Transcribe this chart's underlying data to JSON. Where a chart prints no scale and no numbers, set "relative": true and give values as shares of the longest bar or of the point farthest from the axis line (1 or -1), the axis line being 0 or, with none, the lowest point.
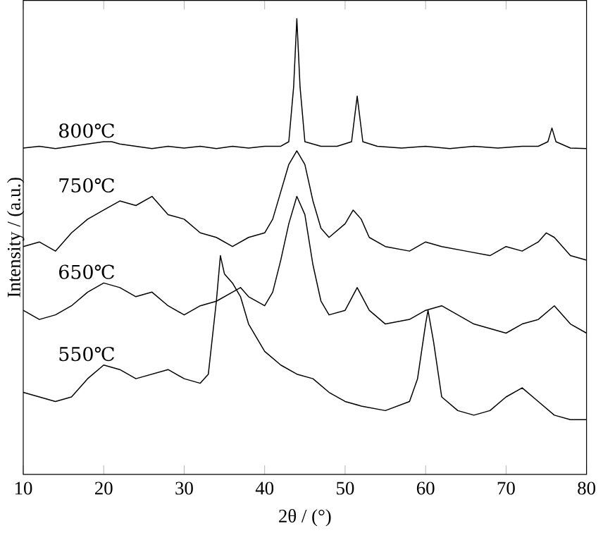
{
  "chart_data": {
    "type": "line",
    "relative": true,
    "xlabel": "2θ / (°)",
    "ylabel": "Intensity / (a.u.)",
    "xlim": [
      10,
      80
    ],
    "xticks": [
      10,
      20,
      30,
      40,
      50,
      60,
      70,
      80
    ],
    "marker": "none",
    "line_style": "solid",
    "series": [
      {
        "name": "800℃",
        "color": "#000000",
        "x": [
          10,
          12,
          14,
          16,
          18,
          20,
          21,
          22,
          24,
          26,
          28,
          30,
          32,
          34,
          36,
          38,
          40,
          42,
          43,
          43.6,
          44,
          44.4,
          45,
          47,
          49,
          50.8,
          51.5,
          52.2,
          54,
          57,
          60,
          63,
          66,
          69,
          72,
          74,
          75.2,
          75.7,
          76.2,
          78,
          80
        ],
        "values": [
          0.716,
          0.72,
          0.715,
          0.72,
          0.725,
          0.73,
          0.73,
          0.725,
          0.72,
          0.715,
          0.72,
          0.716,
          0.72,
          0.715,
          0.72,
          0.716,
          0.72,
          0.72,
          0.73,
          0.85,
          1.0,
          0.85,
          0.73,
          0.72,
          0.72,
          0.73,
          0.83,
          0.73,
          0.72,
          0.716,
          0.72,
          0.715,
          0.72,
          0.716,
          0.72,
          0.72,
          0.73,
          0.76,
          0.73,
          0.716,
          0.715
        ]
      },
      {
        "name": "750℃",
        "color": "#000000",
        "x": [
          10,
          12,
          14,
          16,
          18,
          20,
          22,
          24,
          26,
          28,
          30,
          32,
          34,
          36,
          38,
          40,
          41,
          42,
          43,
          44,
          45,
          46,
          47,
          48,
          50,
          51,
          52,
          53,
          55,
          58,
          60,
          62,
          65,
          68,
          70,
          72,
          74,
          75,
          76,
          78,
          80
        ],
        "values": [
          0.5,
          0.51,
          0.49,
          0.53,
          0.56,
          0.58,
          0.6,
          0.59,
          0.61,
          0.57,
          0.56,
          0.53,
          0.52,
          0.5,
          0.52,
          0.53,
          0.56,
          0.62,
          0.68,
          0.71,
          0.68,
          0.6,
          0.54,
          0.52,
          0.55,
          0.58,
          0.56,
          0.52,
          0.5,
          0.49,
          0.51,
          0.5,
          0.49,
          0.48,
          0.5,
          0.49,
          0.51,
          0.53,
          0.52,
          0.48,
          0.47
        ]
      },
      {
        "name": "650℃",
        "color": "#000000",
        "x": [
          10,
          12,
          14,
          16,
          18,
          20,
          22,
          24,
          26,
          28,
          30,
          32,
          34,
          36,
          37,
          38,
          40,
          41,
          42,
          43,
          44,
          45,
          46,
          47,
          48,
          50,
          51.5,
          53,
          55,
          58,
          60,
          62,
          64,
          66,
          68,
          70,
          72,
          74,
          76,
          78,
          80
        ],
        "values": [
          0.36,
          0.34,
          0.35,
          0.37,
          0.4,
          0.42,
          0.41,
          0.39,
          0.4,
          0.37,
          0.35,
          0.37,
          0.38,
          0.4,
          0.41,
          0.39,
          0.37,
          0.4,
          0.47,
          0.55,
          0.61,
          0.57,
          0.46,
          0.38,
          0.35,
          0.36,
          0.41,
          0.36,
          0.33,
          0.34,
          0.36,
          0.37,
          0.35,
          0.33,
          0.32,
          0.31,
          0.33,
          0.34,
          0.37,
          0.33,
          0.31
        ]
      },
      {
        "name": "550℃",
        "color": "#000000",
        "x": [
          10,
          12,
          14,
          16,
          18,
          20,
          22,
          24,
          26,
          28,
          30,
          32,
          33,
          34,
          34.5,
          35,
          36,
          37,
          38,
          40,
          42,
          44,
          46,
          48,
          50,
          52,
          55,
          58,
          59,
          60,
          60.3,
          61,
          62,
          64,
          66,
          68,
          70,
          72,
          74,
          76,
          78,
          80
        ],
        "values": [
          0.18,
          0.17,
          0.16,
          0.17,
          0.21,
          0.24,
          0.23,
          0.21,
          0.22,
          0.23,
          0.21,
          0.2,
          0.22,
          0.38,
          0.48,
          0.44,
          0.42,
          0.39,
          0.33,
          0.27,
          0.24,
          0.22,
          0.21,
          0.18,
          0.16,
          0.15,
          0.14,
          0.16,
          0.21,
          0.33,
          0.36,
          0.29,
          0.17,
          0.14,
          0.13,
          0.14,
          0.17,
          0.19,
          0.16,
          0.13,
          0.12,
          0.12
        ]
      }
    ]
  }
}
